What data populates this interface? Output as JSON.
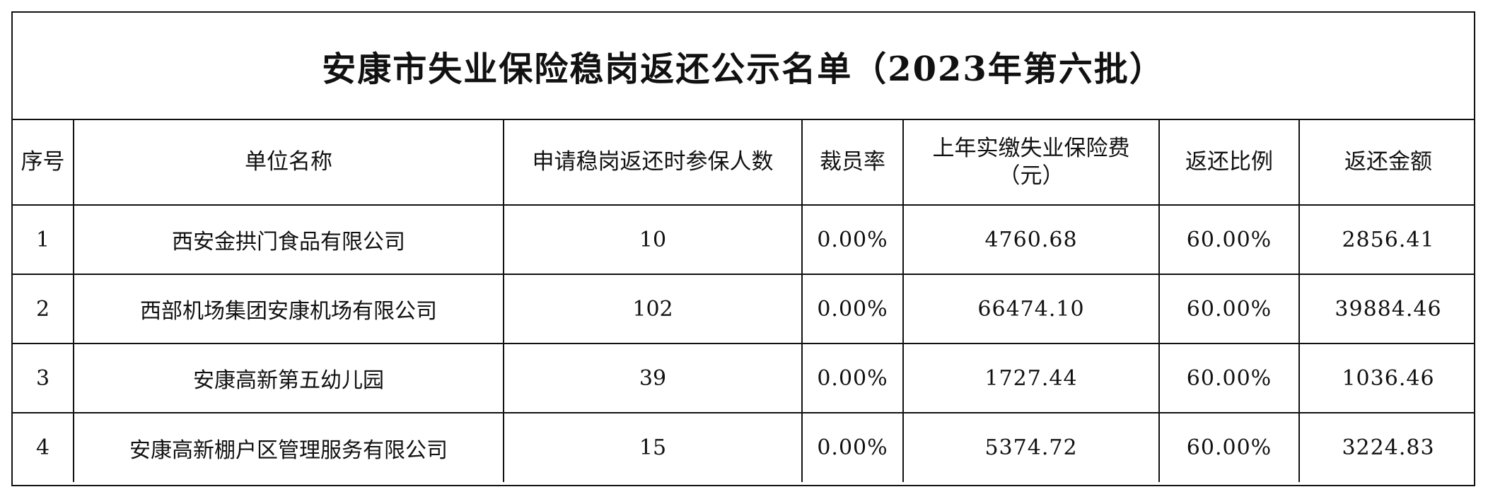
{
  "document": {
    "title": "安康市失业保险稳岗返还公示名单（2023年第六批）",
    "headers": {
      "seq": "序号",
      "unit_name": "单位名称",
      "insured_count": "申请稳岗返还时参保人数",
      "layoff_rate": "裁员率",
      "premium_main": "上年实缴失业保险费",
      "premium_unit": "（元）",
      "return_ratio": "返还比例",
      "return_amount": "返还金额"
    },
    "rows": [
      {
        "seq": "1",
        "unit_name": "西安金拱门食品有限公司",
        "insured_count": "10",
        "layoff_rate": "0.00%",
        "premium_paid": "4760.68",
        "return_ratio": "60.00%",
        "return_amount": "2856.41"
      },
      {
        "seq": "2",
        "unit_name": "西部机场集团安康机场有限公司",
        "insured_count": "102",
        "layoff_rate": "0.00%",
        "premium_paid": "66474.10",
        "return_ratio": "60.00%",
        "return_amount": "39884.46"
      },
      {
        "seq": "3",
        "unit_name": "安康高新第五幼儿园",
        "insured_count": "39",
        "layoff_rate": "0.00%",
        "premium_paid": "1727.44",
        "return_ratio": "60.00%",
        "return_amount": "1036.46"
      },
      {
        "seq": "4",
        "unit_name": "安康高新棚户区管理服务有限公司",
        "insured_count": "15",
        "layoff_rate": "0.00%",
        "premium_paid": "5374.72",
        "return_ratio": "60.00%",
        "return_amount": "3224.83"
      }
    ]
  }
}
